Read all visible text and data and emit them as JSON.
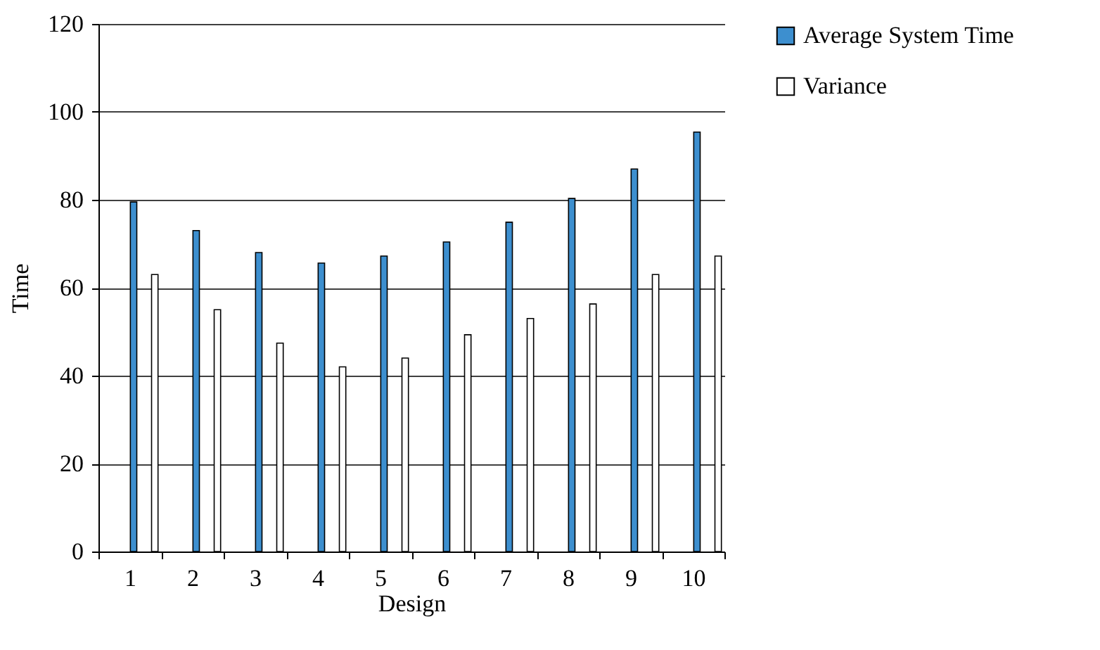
{
  "chart_data": {
    "type": "bar",
    "xlabel": "Design",
    "ylabel": "Time",
    "categories": [
      "1",
      "2",
      "3",
      "4",
      "5",
      "6",
      "7",
      "8",
      "9",
      "10"
    ],
    "series": [
      {
        "name": "Average System Time",
        "color": "#3d8fcf",
        "values": [
          79.5,
          73,
          68,
          65.6,
          67.2,
          70.4,
          74.9,
          80.3,
          87,
          95.4
        ]
      },
      {
        "name": "Variance",
        "color": "#ffffff",
        "values": [
          63,
          55,
          47.4,
          42,
          44,
          49.3,
          53,
          56.3,
          63,
          67.2
        ]
      }
    ],
    "ylim": [
      0,
      120
    ],
    "yticks": [
      0,
      20,
      40,
      60,
      80,
      100,
      120
    ],
    "grid": "y",
    "legend": "right"
  }
}
